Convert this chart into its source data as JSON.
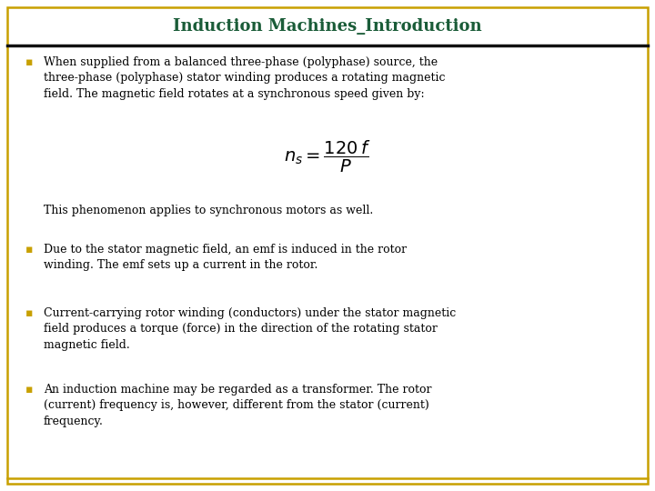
{
  "title": "Induction Machines_Introduction",
  "title_color": "#1a5c38",
  "title_fontsize": 13,
  "border_color": "#c8a000",
  "separator_color": "#1a1a1a",
  "background_color": "#ffffff",
  "bullet_color": "#c8a000",
  "text_color": "#000000",
  "bullet_char": "▪",
  "font_size": 9.0,
  "bullets": [
    {
      "text": "When supplied from a balanced three-phase (polyphase) source, the\nthree-phase (polyphase) stator winding produces a rotating magnetic\nfield. The magnetic field rotates at a synchronous speed given by:",
      "has_formula": true,
      "formula": "$n_s = \\dfrac{120\\,f}{P}$",
      "after_formula": "This phenomenon applies to synchronous motors as well."
    },
    {
      "text": "Due to the stator magnetic field, an emf is induced in the rotor\nwinding. The emf sets up a current in the rotor.",
      "has_formula": false
    },
    {
      "text": "Current-carrying rotor winding (conductors) under the stator magnetic\nfield produces a torque (force) in the direction of the rotating stator\nmagnetic field.",
      "has_formula": false
    },
    {
      "text": "An induction machine may be regarded as a transformer. The rotor\n(current) frequency is, however, different from the stator (current)\nfrequency.",
      "has_formula": false
    }
  ]
}
